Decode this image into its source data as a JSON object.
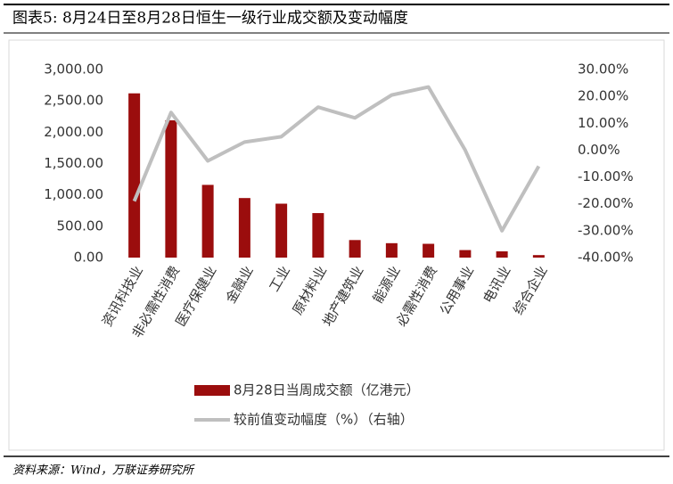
{
  "chart_data": {
    "type": "bar",
    "title": "图表5: 8月24日至8月28日恒生一级行业成交额及变动幅度",
    "source": "资料来源：Wind，万联证券研究所",
    "categories": [
      "资讯科技业",
      "非必需性消费",
      "医疗保健业",
      "金融业",
      "工业",
      "原材料业",
      "地产建筑业",
      "能源业",
      "必需性消费",
      "公用事业",
      "电讯业",
      "综合企业"
    ],
    "series": [
      {
        "name": "8月28日当周成交额（亿港元）",
        "type": "bar",
        "color": "#9b0d0d",
        "axis": "y",
        "values": [
          2620,
          2190,
          1160,
          950,
          860,
          710,
          280,
          230,
          220,
          120,
          100,
          40
        ]
      },
      {
        "name": "较前值变动幅度（%）（右轴）",
        "type": "line",
        "color": "#bfbfbf",
        "axis": "y2",
        "values": [
          -19,
          14,
          -4,
          3,
          5,
          16,
          12,
          20.5,
          23.5,
          0,
          -30,
          -6
        ]
      }
    ],
    "ylim": [
      0,
      3000
    ],
    "yticks": [
      {
        "value": 0,
        "label": "0.00"
      },
      {
        "value": 500,
        "label": "500.00"
      },
      {
        "value": 1000,
        "label": "1,000.00"
      },
      {
        "value": 1500,
        "label": "1,500.00"
      },
      {
        "value": 2000,
        "label": "2,000.00"
      },
      {
        "value": 2500,
        "label": "2,500.00"
      },
      {
        "value": 3000,
        "label": "3,000.00"
      }
    ],
    "y2lim": [
      -40,
      30
    ],
    "y2ticks": [
      {
        "value": -40,
        "label": "-40.00%"
      },
      {
        "value": -30,
        "label": "-30.00%"
      },
      {
        "value": -20,
        "label": "-20.00%"
      },
      {
        "value": -10,
        "label": "-10.00%"
      },
      {
        "value": 0,
        "label": "0.00%"
      },
      {
        "value": 10,
        "label": "10.00%"
      },
      {
        "value": 20,
        "label": "20.00%"
      },
      {
        "value": 30,
        "label": "30.00%"
      }
    ],
    "grid": false
  }
}
